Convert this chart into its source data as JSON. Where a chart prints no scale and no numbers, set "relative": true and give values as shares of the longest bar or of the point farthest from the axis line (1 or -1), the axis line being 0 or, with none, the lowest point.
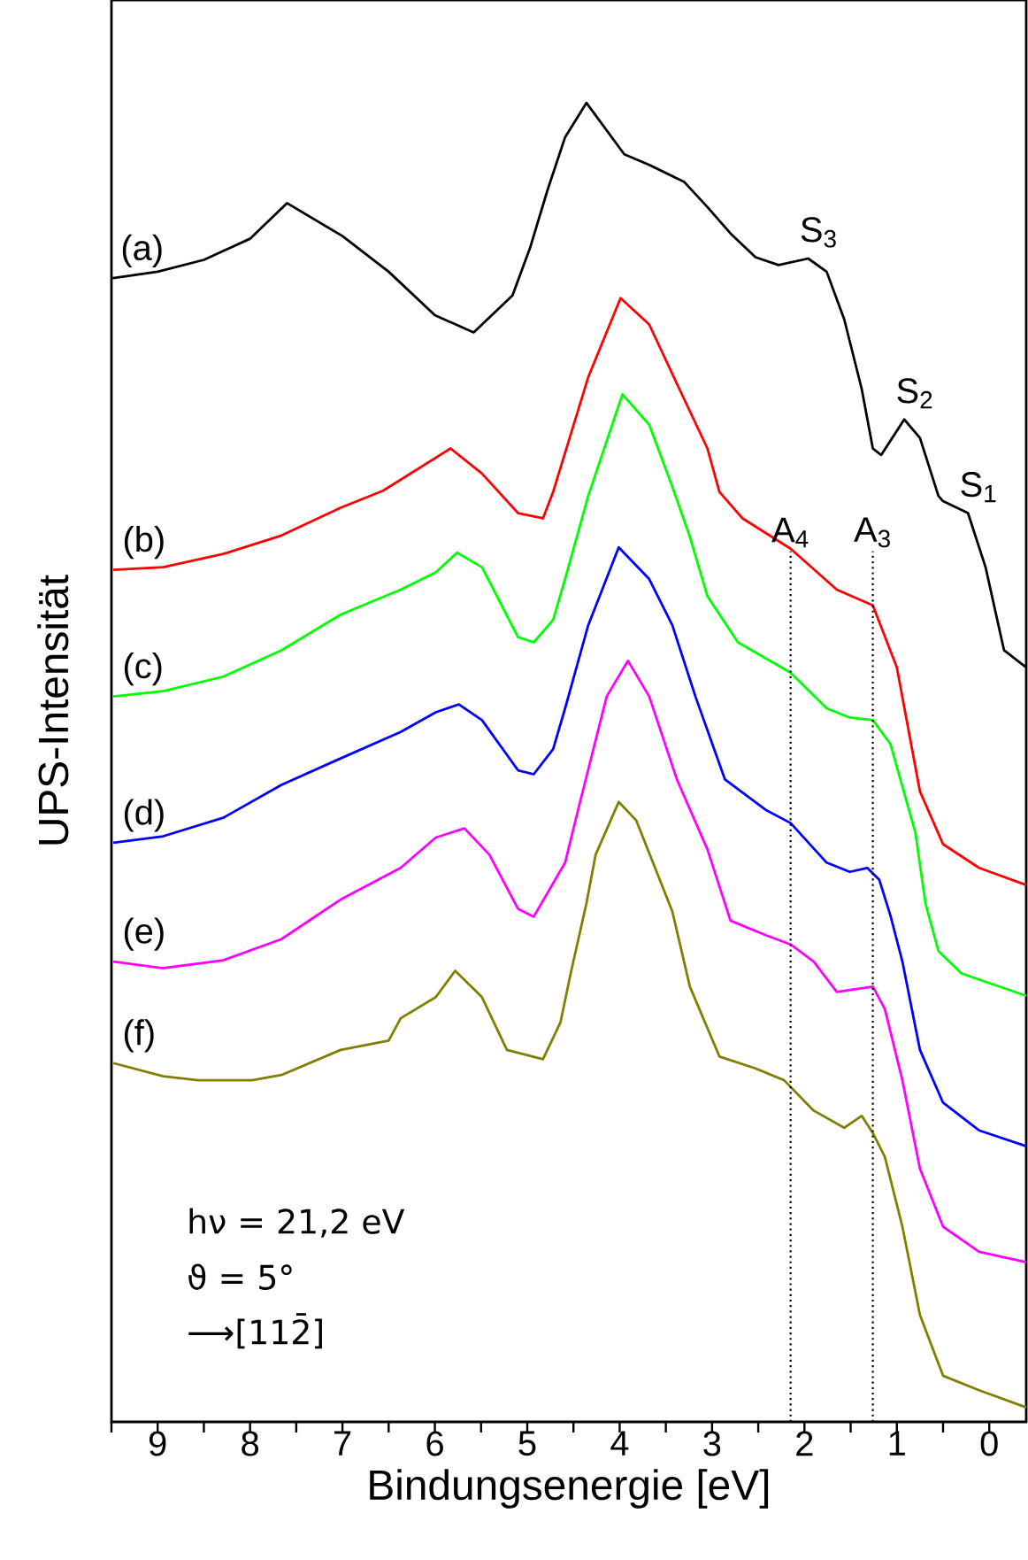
{
  "chart_data": {
    "type": "line",
    "relative": true,
    "xlabel": "Bindungsenergie [eV]",
    "ylabel": "UPS-Intensität",
    "tick_labels": "x",
    "xlim": [
      9.5,
      -0.4
    ],
    "xticks": [
      {
        "value": 9.5,
        "label": null
      },
      9,
      {
        "value": 8.5,
        "label": null
      },
      8,
      {
        "value": 7.5,
        "label": null
      },
      7,
      {
        "value": 6.5,
        "label": null
      },
      6,
      {
        "value": 5.5,
        "label": null
      },
      5,
      {
        "value": 4.5,
        "label": null
      },
      4,
      {
        "value": 3.5,
        "label": null
      },
      3,
      {
        "value": 2.5,
        "label": null
      },
      2,
      {
        "value": 1.5,
        "label": null
      },
      1,
      {
        "value": 0.5,
        "label": null
      },
      0
    ],
    "series": [
      {
        "name": "(a)",
        "color": "#000000",
        "x": [
          9.5,
          9.0,
          8.5,
          8.0,
          7.6,
          7.0,
          6.5,
          6.0,
          5.58,
          5.16,
          4.97,
          4.78,
          4.59,
          4.36,
          3.95,
          3.68,
          3.3,
          3.05,
          2.8,
          2.53,
          2.28,
          1.96,
          1.76,
          1.57,
          1.38,
          1.26,
          1.17,
          0.92,
          0.75,
          0.55,
          0.5,
          0.23,
          0.04,
          -0.16,
          -0.4
        ],
        "values": [
          0.867,
          0.872,
          0.881,
          0.897,
          0.924,
          0.899,
          0.872,
          0.839,
          0.826,
          0.854,
          0.89,
          0.934,
          0.974,
          1.0,
          0.961,
          0.953,
          0.94,
          0.921,
          0.901,
          0.883,
          0.877,
          0.882,
          0.872,
          0.836,
          0.783,
          0.738,
          0.733,
          0.76,
          0.746,
          0.702,
          0.698,
          0.689,
          0.648,
          0.585,
          0.572
        ]
      },
      {
        "name": "(b)",
        "color": "#ff0000",
        "x": [
          9.48,
          8.94,
          8.29,
          7.66,
          7.02,
          6.56,
          5.83,
          5.49,
          5.1,
          4.83,
          4.72,
          4.34,
          3.99,
          3.68,
          3.38,
          3.05,
          2.92,
          2.67,
          2.15,
          1.65,
          1.26,
          1.0,
          0.75,
          0.5,
          0.11,
          -0.4
        ],
        "values": [
          0.646,
          0.648,
          0.658,
          0.672,
          0.693,
          0.706,
          0.738,
          0.719,
          0.689,
          0.685,
          0.705,
          0.792,
          0.852,
          0.832,
          0.787,
          0.738,
          0.705,
          0.685,
          0.662,
          0.631,
          0.619,
          0.572,
          0.478,
          0.438,
          0.42,
          0.407
        ]
      },
      {
        "name": "(c)",
        "color": "#00ff00",
        "x": [
          9.48,
          8.94,
          8.29,
          7.66,
          7.02,
          6.37,
          5.99,
          5.76,
          5.49,
          5.1,
          4.93,
          4.72,
          4.59,
          4.34,
          3.97,
          3.68,
          3.43,
          3.24,
          3.05,
          2.72,
          2.15,
          1.76,
          1.51,
          1.26,
          1.07,
          0.8,
          0.69,
          0.55,
          0.3,
          -0.4
        ],
        "values": [
          0.55,
          0.554,
          0.565,
          0.585,
          0.612,
          0.631,
          0.644,
          0.659,
          0.648,
          0.595,
          0.591,
          0.608,
          0.639,
          0.702,
          0.779,
          0.756,
          0.709,
          0.671,
          0.626,
          0.591,
          0.568,
          0.541,
          0.534,
          0.532,
          0.514,
          0.447,
          0.393,
          0.357,
          0.34,
          0.323
        ]
      },
      {
        "name": "(d)",
        "color": "#0000ff",
        "x": [
          9.48,
          8.94,
          8.29,
          7.66,
          7.02,
          6.37,
          5.99,
          5.74,
          5.49,
          5.1,
          4.93,
          4.72,
          4.59,
          4.34,
          4.01,
          3.68,
          3.43,
          3.18,
          2.86,
          2.42,
          2.15,
          1.76,
          1.51,
          1.32,
          1.19,
          1.07,
          0.94,
          0.75,
          0.5,
          0.11,
          -0.4
        ],
        "values": [
          0.439,
          0.444,
          0.458,
          0.483,
          0.503,
          0.523,
          0.538,
          0.544,
          0.532,
          0.494,
          0.491,
          0.51,
          0.541,
          0.604,
          0.663,
          0.639,
          0.604,
          0.55,
          0.487,
          0.464,
          0.454,
          0.424,
          0.417,
          0.42,
          0.411,
          0.384,
          0.349,
          0.282,
          0.242,
          0.221,
          0.209
        ]
      },
      {
        "name": "(e)",
        "color": "#ff00ff",
        "x": [
          9.48,
          8.94,
          8.29,
          7.66,
          7.02,
          6.37,
          5.99,
          5.68,
          5.41,
          5.1,
          4.93,
          4.59,
          4.45,
          4.14,
          3.91,
          3.68,
          3.38,
          3.05,
          2.8,
          2.42,
          2.15,
          1.9,
          1.65,
          1.26,
          1.13,
          0.94,
          0.75,
          0.5,
          0.11,
          -0.4
        ],
        "values": [
          0.349,
          0.344,
          0.35,
          0.366,
          0.396,
          0.42,
          0.443,
          0.45,
          0.43,
          0.389,
          0.383,
          0.424,
          0.464,
          0.55,
          0.577,
          0.55,
          0.487,
          0.434,
          0.38,
          0.369,
          0.362,
          0.349,
          0.326,
          0.33,
          0.313,
          0.259,
          0.192,
          0.148,
          0.129,
          0.121
        ]
      },
      {
        "name": "(f)",
        "color": "#808000",
        "x": [
          9.48,
          8.94,
          8.56,
          7.98,
          7.66,
          7.02,
          6.5,
          6.37,
          5.99,
          5.78,
          5.49,
          5.22,
          4.83,
          4.64,
          4.53,
          4.36,
          4.26,
          4.01,
          3.82,
          3.43,
          3.24,
          2.92,
          2.53,
          2.22,
          1.9,
          1.57,
          1.38,
          1.26,
          1.13,
          0.94,
          0.75,
          0.5,
          0.11,
          -0.4
        ],
        "values": [
          0.272,
          0.262,
          0.259,
          0.259,
          0.263,
          0.282,
          0.289,
          0.306,
          0.322,
          0.342,
          0.322,
          0.282,
          0.275,
          0.303,
          0.34,
          0.393,
          0.43,
          0.47,
          0.456,
          0.387,
          0.33,
          0.277,
          0.268,
          0.259,
          0.236,
          0.223,
          0.232,
          0.219,
          0.201,
          0.148,
          0.081,
          0.035,
          0.024,
          0.011
        ]
      }
    ],
    "ref_lines": [
      {
        "axis": "x",
        "value": 2.15,
        "label": "A$_{4}$",
        "color": "#000000",
        "line_style": "dotted"
      },
      {
        "axis": "x",
        "value": 1.26,
        "label": "A$_{3}$",
        "color": "#000000",
        "line_style": "dotted"
      }
    ],
    "annotations": [
      {
        "text": "S$_{3}$",
        "x": 1.96,
        "y": 0.882
      },
      {
        "text": "S$_{2}$",
        "x": 0.92,
        "y": 0.76
      },
      {
        "text": "S$_{1}$",
        "x": 0.23,
        "y": 0.689
      },
      "hν = 21,2 eV",
      "ϑ  = 5°",
      "⟶[112̄]"
    ]
  }
}
